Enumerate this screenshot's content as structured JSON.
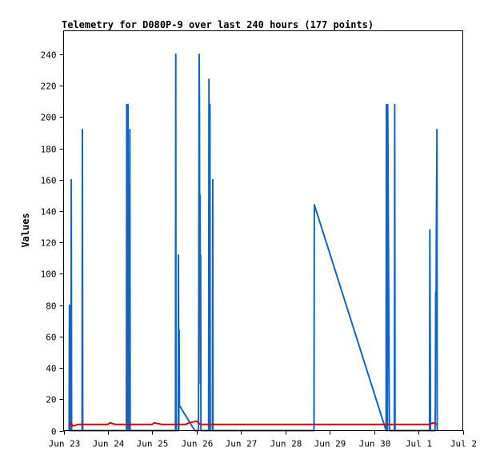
{
  "chart_data": {
    "type": "line",
    "title": "Telemetry for D080P-9 over last 240 hours (177 points)",
    "xlabel": "",
    "ylabel": "Values",
    "ylim": [
      0,
      255
    ],
    "yticks": [
      0,
      20,
      40,
      60,
      80,
      100,
      120,
      140,
      160,
      180,
      200,
      220,
      240
    ],
    "x_axis": {
      "type": "date",
      "range": [
        "2026-06-23T00:00",
        "2026-07-02T00:00"
      ],
      "tick_labels": [
        {
          "date": "2026-06-23T00:00",
          "label": "Jun 23"
        },
        {
          "date": "2026-06-24T00:00",
          "label": "Jun 24"
        },
        {
          "date": "2026-06-25T00:00",
          "label": "Jun 25"
        },
        {
          "date": "2026-06-26T00:00",
          "label": "Jun 26"
        },
        {
          "date": "2026-06-27T00:00",
          "label": "Jun 27"
        },
        {
          "date": "2026-06-28T00:00",
          "label": "Jun 28"
        },
        {
          "date": "2026-06-29T00:00",
          "label": "Jun 29"
        },
        {
          "date": "2026-06-30T00:00",
          "label": "Jun 30"
        },
        {
          "date": "2026-07-01T00:00",
          "label": "Jul 1"
        },
        {
          "date": "2026-07-02T00:00",
          "label": "Jul 2"
        }
      ]
    },
    "grid": false,
    "legend": "none",
    "series": [
      {
        "color": "#1565c0",
        "points": [
          [
            "2026-06-23T03:00",
            0
          ],
          [
            "2026-06-23T03:10",
            80
          ],
          [
            "2026-06-23T03:20",
            0
          ],
          [
            "2026-06-23T04:00",
            0
          ],
          [
            "2026-06-23T04:10",
            160
          ],
          [
            "2026-06-23T04:20",
            0
          ],
          [
            "2026-06-23T10:00",
            0
          ],
          [
            "2026-06-23T10:10",
            192
          ],
          [
            "2026-06-23T10:20",
            0
          ],
          [
            "2026-06-24T10:00",
            0
          ],
          [
            "2026-06-24T10:10",
            208
          ],
          [
            "2026-06-24T10:20",
            0
          ],
          [
            "2026-06-24T10:40",
            0
          ],
          [
            "2026-06-24T10:50",
            208
          ],
          [
            "2026-06-24T11:00",
            52
          ],
          [
            "2026-06-24T11:10",
            156
          ],
          [
            "2026-06-24T11:20",
            0
          ],
          [
            "2026-06-24T11:40",
            0
          ],
          [
            "2026-06-24T11:50",
            192
          ],
          [
            "2026-06-24T12:00",
            0
          ],
          [
            "2026-06-25T12:30",
            0
          ],
          [
            "2026-06-25T12:40",
            240
          ],
          [
            "2026-06-25T12:50",
            0
          ],
          [
            "2026-06-25T14:00",
            0
          ],
          [
            "2026-06-25T14:10",
            112
          ],
          [
            "2026-06-25T14:20",
            0
          ],
          [
            "2026-06-25T14:30",
            64
          ],
          [
            "2026-06-25T14:40",
            16
          ],
          [
            "2026-06-25T23:00",
            0
          ],
          [
            "2026-06-26T01:00",
            0
          ],
          [
            "2026-06-26T01:10",
            96
          ],
          [
            "2026-06-26T01:20",
            240
          ],
          [
            "2026-06-26T01:30",
            210
          ],
          [
            "2026-06-26T01:40",
            92
          ],
          [
            "2026-06-26T01:50",
            150
          ],
          [
            "2026-06-26T02:00",
            30
          ],
          [
            "2026-06-26T02:10",
            112
          ],
          [
            "2026-06-26T02:20",
            0
          ],
          [
            "2026-06-26T06:30",
            0
          ],
          [
            "2026-06-26T06:40",
            224
          ],
          [
            "2026-06-26T06:50",
            0
          ],
          [
            "2026-06-26T07:00",
            0
          ],
          [
            "2026-06-26T07:10",
            208
          ],
          [
            "2026-06-26T07:20",
            0
          ],
          [
            "2026-06-26T08:30",
            0
          ],
          [
            "2026-06-26T08:40",
            160
          ],
          [
            "2026-06-26T08:50",
            0
          ],
          [
            "2026-06-28T15:30",
            0
          ],
          [
            "2026-06-28T15:40",
            144
          ],
          [
            "2026-06-30T06:30",
            0
          ],
          [
            "2026-06-30T06:40",
            208
          ],
          [
            "2026-06-30T06:50",
            0
          ],
          [
            "2026-06-30T07:10",
            0
          ],
          [
            "2026-06-30T07:20",
            208
          ],
          [
            "2026-06-30T07:30",
            187
          ],
          [
            "2026-06-30T07:40",
            146
          ],
          [
            "2026-06-30T07:50",
            104
          ],
          [
            "2026-06-30T08:00",
            63
          ],
          [
            "2026-06-30T08:10",
            21
          ],
          [
            "2026-06-30T08:20",
            0
          ],
          [
            "2026-06-30T11:00",
            0
          ],
          [
            "2026-06-30T11:10",
            208
          ],
          [
            "2026-06-30T11:20",
            0
          ],
          [
            "2026-07-01T06:00",
            0
          ],
          [
            "2026-07-01T06:10",
            128
          ],
          [
            "2026-07-01T06:20",
            64
          ],
          [
            "2026-07-01T06:30",
            0
          ],
          [
            "2026-07-01T09:00",
            0
          ],
          [
            "2026-07-01T09:10",
            18
          ],
          [
            "2026-07-01T09:20",
            88
          ],
          [
            "2026-07-01T09:30",
            52
          ],
          [
            "2026-07-01T09:40",
            124
          ],
          [
            "2026-07-01T09:50",
            158
          ],
          [
            "2026-07-01T10:00",
            192
          ],
          [
            "2026-07-01T10:10",
            0
          ]
        ]
      },
      {
        "color": "#dd0000",
        "points": [
          [
            "2026-06-23T03:10",
            3
          ],
          [
            "2026-06-23T04:00",
            5
          ],
          [
            "2026-06-23T05:00",
            3
          ],
          [
            "2026-06-23T08:00",
            4
          ],
          [
            "2026-06-24T00:00",
            4
          ],
          [
            "2026-06-24T01:00",
            5
          ],
          [
            "2026-06-24T04:00",
            4
          ],
          [
            "2026-06-25T00:00",
            4
          ],
          [
            "2026-06-25T01:00",
            5
          ],
          [
            "2026-06-25T05:00",
            4
          ],
          [
            "2026-06-25T18:00",
            4
          ],
          [
            "2026-06-25T20:00",
            5
          ],
          [
            "2026-06-26T00:00",
            6
          ],
          [
            "2026-06-26T02:00",
            4
          ],
          [
            "2026-06-26T12:00",
            4
          ],
          [
            "2026-06-28T00:00",
            4
          ],
          [
            "2026-06-30T00:00",
            4
          ],
          [
            "2026-06-30T12:00",
            4
          ],
          [
            "2026-07-01T06:00",
            4
          ],
          [
            "2026-07-01T08:00",
            5
          ],
          [
            "2026-07-01T10:00",
            4
          ]
        ]
      }
    ]
  }
}
